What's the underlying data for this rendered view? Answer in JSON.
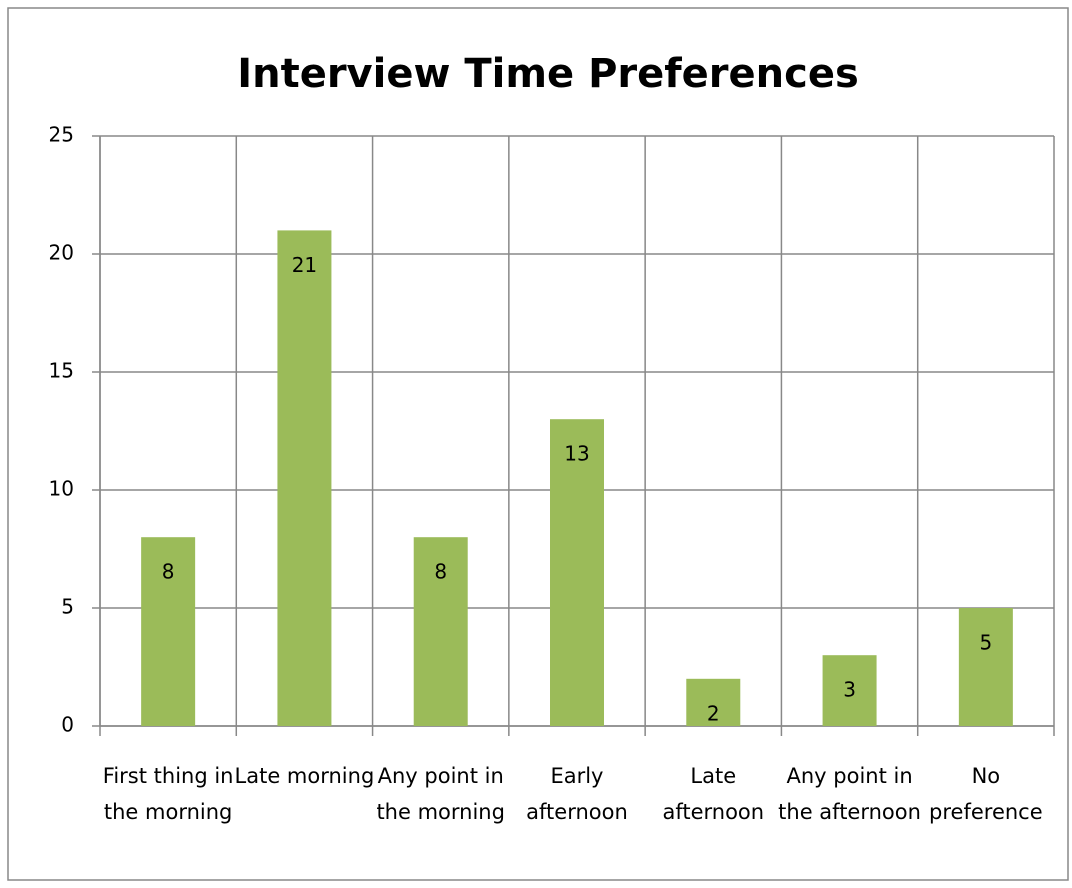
{
  "chart_data": {
    "type": "bar",
    "title": "Interview Time Preferences",
    "categories": [
      "First thing in the morning",
      "Late morning",
      "Any point in the morning",
      "Early afternoon",
      "Late afternoon",
      "Any point in the afternoon",
      "No preference"
    ],
    "values": [
      8,
      21,
      8,
      13,
      2,
      3,
      5
    ],
    "color": "#9bbb59",
    "ylim": [
      0,
      25
    ],
    "yticks": [
      0,
      5,
      10,
      15,
      20,
      25
    ],
    "grid": true
  }
}
